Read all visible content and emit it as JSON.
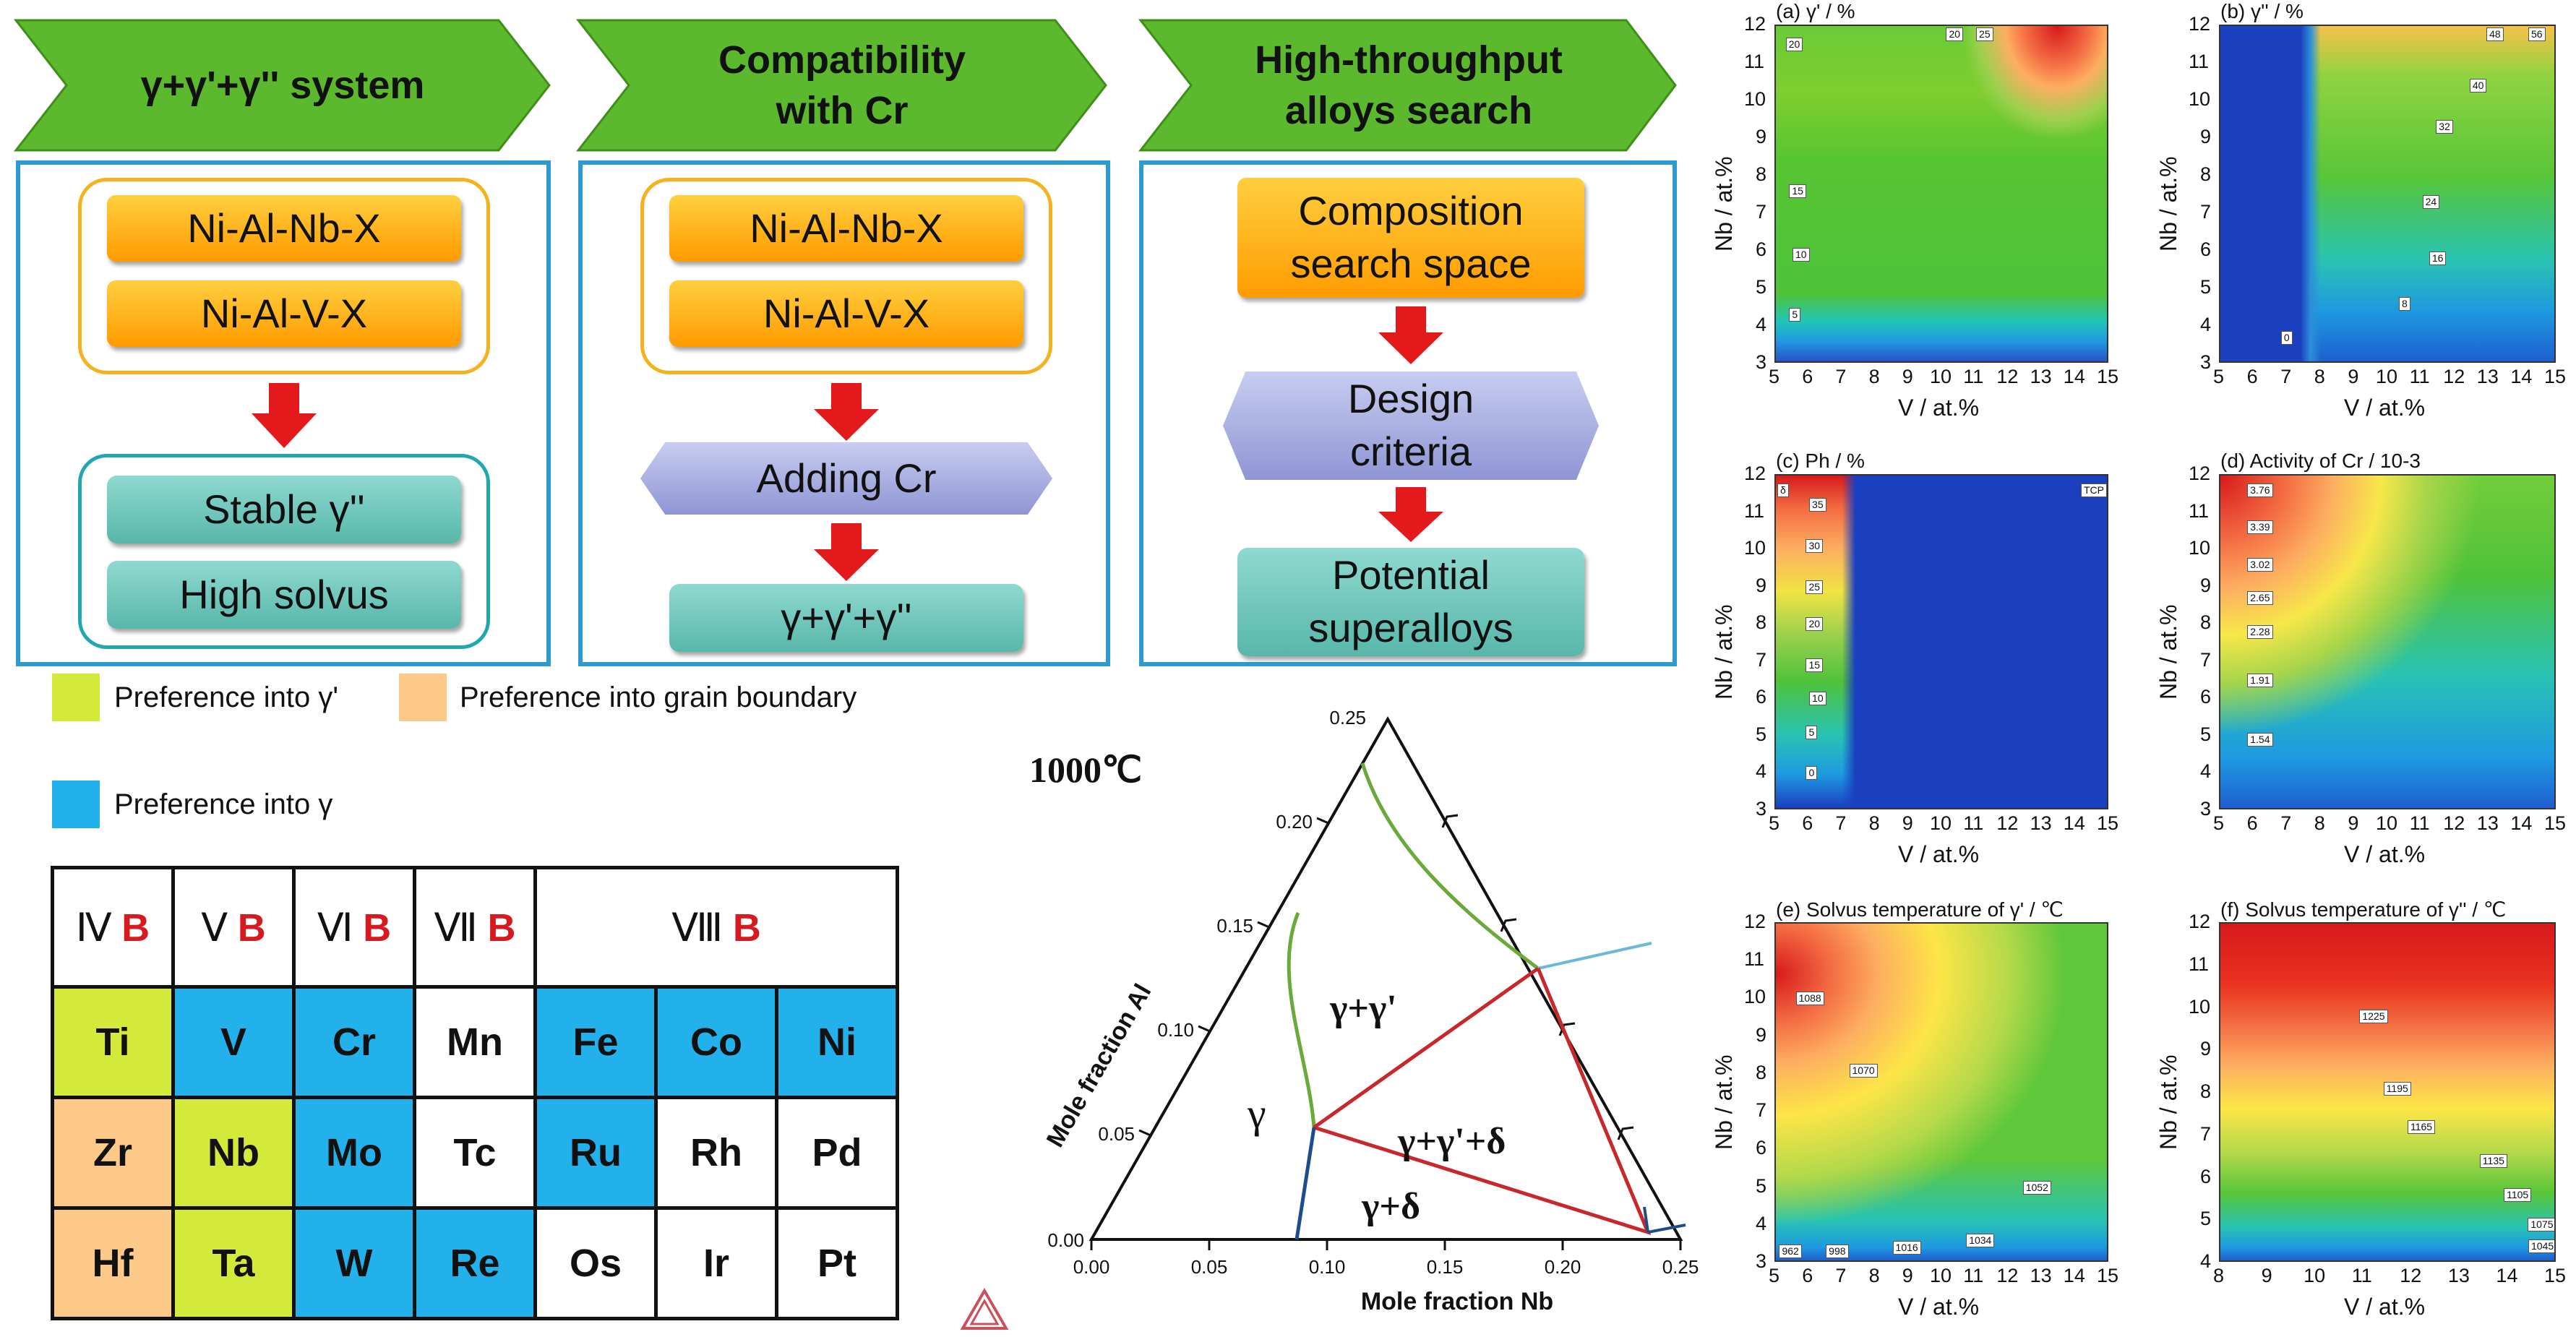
{
  "workflow": {
    "col1": {
      "title": "γ+γ'+γ'' system",
      "box1": "Ni-Al-Nb-X",
      "box2": "Ni-Al-V-X",
      "box3": "Stable γ''",
      "box4": "High solvus"
    },
    "col2": {
      "title_line1": "Compatibility",
      "title_line2": "with Cr",
      "box1": "Ni-Al-Nb-X",
      "box2": "Ni-Al-V-X",
      "box3": "Adding Cr",
      "box4": "γ+γ'+γ''"
    },
    "col3": {
      "title_line1": "High-throughput",
      "title_line2": "alloys search",
      "box1_line1": "Composition",
      "box1_line2": "search space",
      "box2_line1": "Design",
      "box2_line2": "criteria",
      "box3_line1": "Potential",
      "box3_line2": "superalloys"
    },
    "colors": {
      "chevron": "#5cb82c",
      "panel_border": "#2e9bd0",
      "arrow": "#e3191c"
    }
  },
  "legend": {
    "gp": {
      "label": "Preference into γ'",
      "color": "#d4ea3a"
    },
    "gb": {
      "label": "Preference into grain boundary",
      "color": "#fcc988"
    },
    "g": {
      "label": "Preference into γ",
      "color": "#22b1ea"
    }
  },
  "periodic_table": {
    "headers": [
      {
        "roman": "Ⅳ",
        "b": "B"
      },
      {
        "roman": "Ⅴ",
        "b": "B"
      },
      {
        "roman": "Ⅵ",
        "b": "B"
      },
      {
        "roman": "Ⅶ",
        "b": "B"
      },
      {
        "roman": "Ⅷ",
        "b": "B"
      }
    ],
    "rows": [
      [
        {
          "el": "Ti",
          "cat": "gp"
        },
        {
          "el": "V",
          "cat": "g"
        },
        {
          "el": "Cr",
          "cat": "g"
        },
        {
          "el": "Mn",
          "cat": "none"
        },
        {
          "el": "Fe",
          "cat": "g"
        },
        {
          "el": "Co",
          "cat": "g"
        },
        {
          "el": "Ni",
          "cat": "g"
        }
      ],
      [
        {
          "el": "Zr",
          "cat": "gb"
        },
        {
          "el": "Nb",
          "cat": "gp"
        },
        {
          "el": "Mo",
          "cat": "g"
        },
        {
          "el": "Tc",
          "cat": "none"
        },
        {
          "el": "Ru",
          "cat": "g"
        },
        {
          "el": "Rh",
          "cat": "none"
        },
        {
          "el": "Pd",
          "cat": "none"
        }
      ],
      [
        {
          "el": "Hf",
          "cat": "gb"
        },
        {
          "el": "Ta",
          "cat": "gp"
        },
        {
          "el": "W",
          "cat": "g"
        },
        {
          "el": "Re",
          "cat": "g"
        },
        {
          "el": "Os",
          "cat": "none"
        },
        {
          "el": "Ir",
          "cat": "none"
        },
        {
          "el": "Pt",
          "cat": "none"
        }
      ]
    ]
  },
  "ternary": {
    "temperature": "1000℃",
    "xlabel": "Mole fraction Nb",
    "ylabel": "Mole fraction Al",
    "bottom_ticks": [
      "0.00",
      "0.05",
      "0.10",
      "0.15",
      "0.20",
      "0.25"
    ],
    "left_ticks": [
      "0.00",
      "0.05",
      "0.10",
      "0.15",
      "0.20",
      "0.25"
    ],
    "phases": {
      "g": "γ",
      "gp": "γ+γ'",
      "gpd": "γ+γ'+δ",
      "gd": "γ+δ"
    }
  },
  "chart_data": [
    {
      "type": "heatmap",
      "title": "(a) γ' / %",
      "xlabel": "V / at.%",
      "ylabel": "Nb / at.%",
      "x_ticks": [
        "5",
        "6",
        "7",
        "8",
        "9",
        "10",
        "11",
        "12",
        "13",
        "14",
        "15"
      ],
      "y_ticks": [
        "3",
        "4",
        "5",
        "6",
        "7",
        "8",
        "9",
        "10",
        "11",
        "12"
      ],
      "xlim": [
        5,
        15
      ],
      "ylim": [
        3,
        12
      ],
      "contour_labels": [
        {
          "text": "20",
          "x": 5.6,
          "y": 11.5
        },
        {
          "text": "15",
          "x": 5.7,
          "y": 7.6
        },
        {
          "text": "10",
          "x": 5.8,
          "y": 5.9
        },
        {
          "text": "5",
          "x": 5.7,
          "y": 4.3
        },
        {
          "text": "20",
          "x": 10.4,
          "y": 11.9
        },
        {
          "text": "25",
          "x": 11.3,
          "y": 11.9
        }
      ]
    },
    {
      "type": "heatmap",
      "title": "(b) γ'' / %",
      "xlabel": "V / at.%",
      "ylabel": "Nb / at.%",
      "x_ticks": [
        "5",
        "6",
        "7",
        "8",
        "9",
        "10",
        "11",
        "12",
        "13",
        "14",
        "15"
      ],
      "y_ticks": [
        "3",
        "4",
        "5",
        "6",
        "7",
        "8",
        "9",
        "10",
        "11",
        "12"
      ],
      "xlim": [
        5,
        15
      ],
      "ylim": [
        3,
        12
      ],
      "contour_labels": [
        {
          "text": "48",
          "x": 13.2,
          "y": 11.8
        },
        {
          "text": "56",
          "x": 14.5,
          "y": 11.8
        },
        {
          "text": "40",
          "x": 12.7,
          "y": 10.4
        },
        {
          "text": "32",
          "x": 11.7,
          "y": 9.3
        },
        {
          "text": "24",
          "x": 11.3,
          "y": 7.3
        },
        {
          "text": "16",
          "x": 11.5,
          "y": 5.8
        },
        {
          "text": "8",
          "x": 10.6,
          "y": 4.6
        },
        {
          "text": "0",
          "x": 7.1,
          "y": 3.7
        }
      ]
    },
    {
      "type": "heatmap",
      "title": "(c) Ph / %",
      "xlabel": "V / at.%",
      "ylabel": "Nb / at.%",
      "x_ticks": [
        "5",
        "6",
        "7",
        "8",
        "9",
        "10",
        "11",
        "12",
        "13",
        "14",
        "15"
      ],
      "y_ticks": [
        "3",
        "4",
        "5",
        "6",
        "7",
        "8",
        "9",
        "10",
        "11",
        "12"
      ],
      "xlim": [
        5,
        15
      ],
      "ylim": [
        3,
        12
      ],
      "contour_labels": [
        {
          "text": "δ",
          "x": 5.3,
          "y": 11.6
        },
        {
          "text": "TCP",
          "x": 14.6,
          "y": 11.6
        },
        {
          "text": "35",
          "x": 6.3,
          "y": 11.2
        },
        {
          "text": "30",
          "x": 6.2,
          "y": 10.1
        },
        {
          "text": "25",
          "x": 6.2,
          "y": 9.0
        },
        {
          "text": "20",
          "x": 6.2,
          "y": 8.0
        },
        {
          "text": "15",
          "x": 6.2,
          "y": 6.9
        },
        {
          "text": "10",
          "x": 6.3,
          "y": 6.0
        },
        {
          "text": "5",
          "x": 6.2,
          "y": 5.1
        },
        {
          "text": "0",
          "x": 6.2,
          "y": 4.0
        }
      ]
    },
    {
      "type": "heatmap",
      "title": "(d) Activity of Cr / 10-3",
      "xlabel": "V / at.%",
      "ylabel": "Nb / at.%",
      "x_ticks": [
        "5",
        "6",
        "7",
        "8",
        "9",
        "10",
        "11",
        "12",
        "13",
        "14",
        "15"
      ],
      "y_ticks": [
        "3",
        "4",
        "5",
        "6",
        "7",
        "8",
        "9",
        "10",
        "11",
        "12"
      ],
      "xlim": [
        5,
        15
      ],
      "ylim": [
        3,
        12
      ],
      "contour_labels": [
        {
          "text": "3.76",
          "x": 6.1,
          "y": 11.6
        },
        {
          "text": "3.39",
          "x": 6.1,
          "y": 10.6
        },
        {
          "text": "3.02",
          "x": 6.1,
          "y": 9.6
        },
        {
          "text": "2.65",
          "x": 6.1,
          "y": 8.7
        },
        {
          "text": "2.28",
          "x": 6.1,
          "y": 7.8
        },
        {
          "text": "1.91",
          "x": 6.1,
          "y": 6.5
        },
        {
          "text": "1.54",
          "x": 6.1,
          "y": 4.9
        }
      ]
    },
    {
      "type": "heatmap",
      "title": "(e) Solvus temperature of γ' / ℃",
      "xlabel": "V / at.%",
      "ylabel": "Nb / at.%",
      "x_ticks": [
        "5",
        "6",
        "7",
        "8",
        "9",
        "10",
        "11",
        "12",
        "13",
        "14",
        "15"
      ],
      "y_ticks": [
        "3",
        "4",
        "5",
        "6",
        "7",
        "8",
        "9",
        "10",
        "11",
        "12"
      ],
      "xlim": [
        5,
        15
      ],
      "ylim": [
        3,
        12
      ],
      "contour_labels": [
        {
          "text": "1088",
          "x": 5.9,
          "y": 10.0
        },
        {
          "text": "1070",
          "x": 7.5,
          "y": 8.1
        },
        {
          "text": "1052",
          "x": 12.7,
          "y": 5.0
        },
        {
          "text": "1034",
          "x": 11.0,
          "y": 3.6
        },
        {
          "text": "1016",
          "x": 8.8,
          "y": 3.4
        },
        {
          "text": "998",
          "x": 6.8,
          "y": 3.3
        },
        {
          "text": "962",
          "x": 5.4,
          "y": 3.3
        }
      ]
    },
    {
      "type": "heatmap",
      "title": "(f) Solvus temperature of γ'' / ℃",
      "xlabel": "V / at.%",
      "ylabel": "Nb / at.%",
      "x_ticks": [
        "8",
        "9",
        "10",
        "11",
        "12",
        "13",
        "14",
        "15"
      ],
      "y_ticks": [
        "4",
        "5",
        "6",
        "7",
        "8",
        "9",
        "10",
        "11",
        "12"
      ],
      "xlim": [
        8,
        15
      ],
      "ylim": [
        4,
        12
      ],
      "contour_labels": [
        {
          "text": "1225",
          "x": 11.1,
          "y": 9.8
        },
        {
          "text": "1195",
          "x": 11.6,
          "y": 8.1
        },
        {
          "text": "1165",
          "x": 12.1,
          "y": 7.2
        },
        {
          "text": "1135",
          "x": 13.6,
          "y": 6.4
        },
        {
          "text": "1105",
          "x": 14.1,
          "y": 5.6
        },
        {
          "text": "1075",
          "x": 14.6,
          "y": 4.9
        },
        {
          "text": "1045",
          "x": 14.9,
          "y": 4.4
        }
      ]
    }
  ]
}
